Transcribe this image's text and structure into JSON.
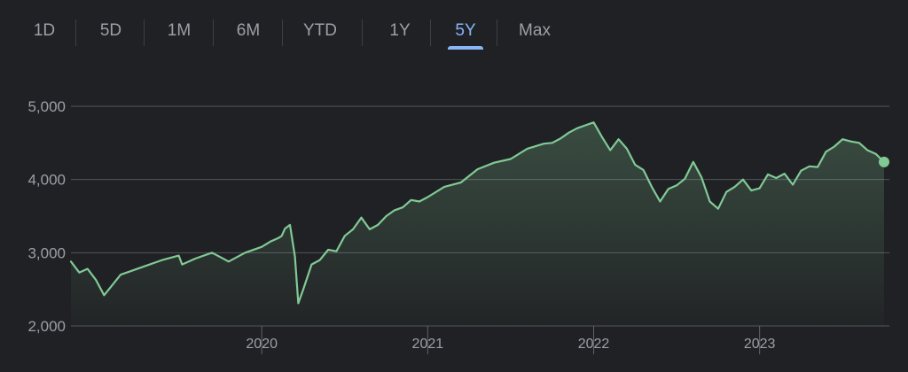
{
  "range_tabs": [
    {
      "label": "1D",
      "active": false
    },
    {
      "label": "5D",
      "active": false
    },
    {
      "label": "1M",
      "active": false
    },
    {
      "label": "6M",
      "active": false
    },
    {
      "label": "YTD",
      "active": false
    },
    {
      "label": "1Y",
      "active": false
    },
    {
      "label": "5Y",
      "active": true
    },
    {
      "label": "Max",
      "active": false
    }
  ],
  "colors": {
    "background": "#202124",
    "line": "#81c995",
    "active_tab": "#8ab4f8",
    "text": "#9aa0a6",
    "grid": "#5f6368"
  },
  "chart_data": {
    "type": "area",
    "title": "",
    "xlabel": "",
    "ylabel": "",
    "ylim": [
      2000,
      5000
    ],
    "xlim": [
      2018.85,
      2023.75
    ],
    "y_ticks": [
      2000,
      3000,
      4000,
      5000
    ],
    "y_tick_labels": [
      "2,000",
      "3,000",
      "4,000",
      "5,000"
    ],
    "x_ticks": [
      2020,
      2021,
      2022,
      2023
    ],
    "x_tick_labels": [
      "2020",
      "2021",
      "2022",
      "2023"
    ],
    "grid": true,
    "series": [
      {
        "x": [
          2018.85,
          2018.9,
          2018.95,
          2019.0,
          2019.05,
          2019.1,
          2019.15,
          2019.2,
          2019.3,
          2019.4,
          2019.5,
          2019.52,
          2019.6,
          2019.7,
          2019.8,
          2019.9,
          2020.0,
          2020.05,
          2020.1,
          2020.12,
          2020.14,
          2020.17,
          2020.2,
          2020.22,
          2020.25,
          2020.3,
          2020.35,
          2020.4,
          2020.45,
          2020.5,
          2020.55,
          2020.6,
          2020.65,
          2020.7,
          2020.75,
          2020.8,
          2020.85,
          2020.9,
          2020.95,
          2021.0,
          2021.1,
          2021.2,
          2021.3,
          2021.4,
          2021.5,
          2021.6,
          2021.7,
          2021.75,
          2021.8,
          2021.85,
          2021.9,
          2021.95,
          2022.0,
          2022.05,
          2022.1,
          2022.15,
          2022.2,
          2022.25,
          2022.3,
          2022.35,
          2022.4,
          2022.45,
          2022.5,
          2022.55,
          2022.6,
          2022.65,
          2022.7,
          2022.75,
          2022.8,
          2022.85,
          2022.9,
          2022.95,
          2023.0,
          2023.05,
          2023.1,
          2023.15,
          2023.2,
          2023.25,
          2023.3,
          2023.35,
          2023.4,
          2023.45,
          2023.5,
          2023.55,
          2023.6,
          2023.65,
          2023.7,
          2023.75
        ],
        "y": [
          2880,
          2730,
          2780,
          2630,
          2420,
          2560,
          2700,
          2740,
          2820,
          2900,
          2960,
          2840,
          2920,
          3000,
          2880,
          3000,
          3080,
          3150,
          3200,
          3230,
          3330,
          3380,
          2950,
          2310,
          2500,
          2840,
          2900,
          3040,
          3020,
          3230,
          3320,
          3480,
          3320,
          3380,
          3500,
          3580,
          3620,
          3720,
          3700,
          3760,
          3900,
          3960,
          4140,
          4230,
          4280,
          4420,
          4490,
          4500,
          4560,
          4640,
          4700,
          4740,
          4780,
          4580,
          4400,
          4550,
          4420,
          4200,
          4130,
          3900,
          3700,
          3870,
          3920,
          4010,
          4240,
          4030,
          3700,
          3600,
          3830,
          3900,
          4000,
          3850,
          3880,
          4070,
          4020,
          4080,
          3930,
          4120,
          4180,
          4170,
          4380,
          4450,
          4550,
          4520,
          4500,
          4400,
          4350,
          4240
        ]
      }
    ]
  }
}
